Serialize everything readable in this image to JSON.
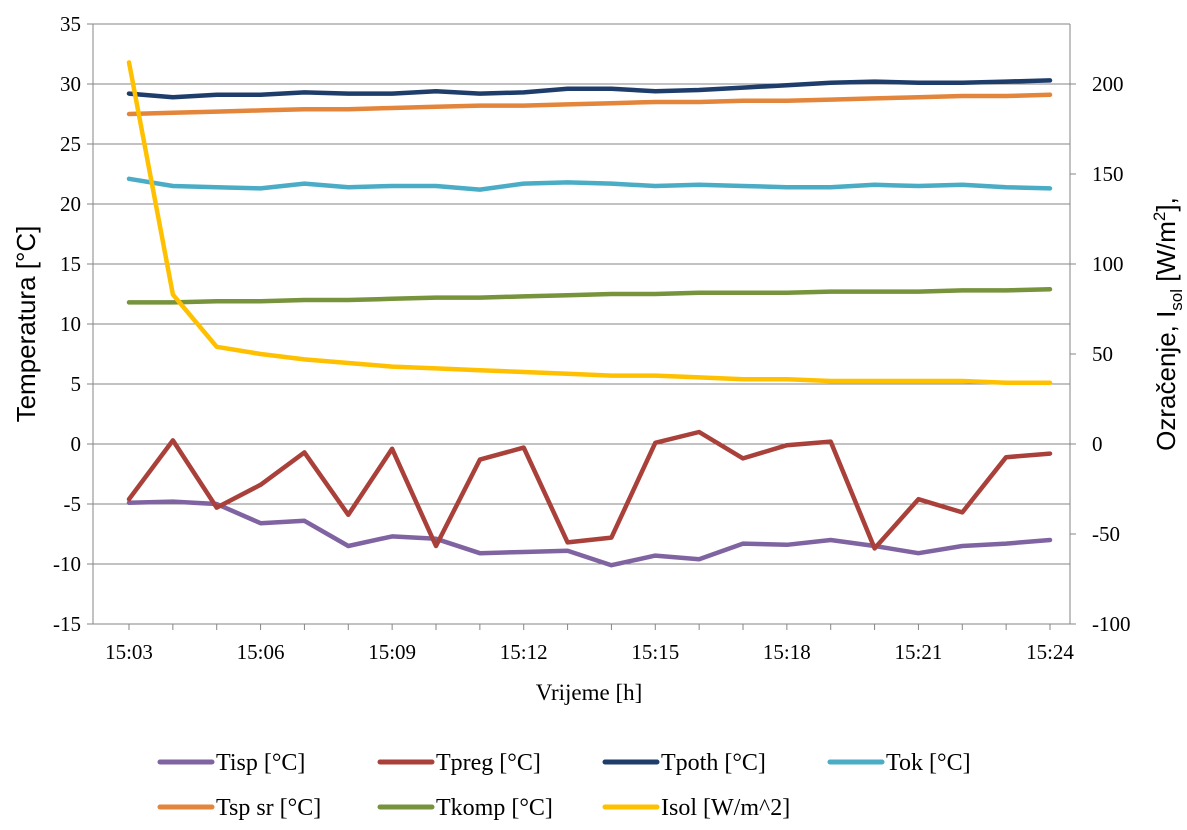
{
  "chart_data": {
    "type": "line",
    "xlabel": "Vrijeme [h]",
    "ylabel": "Temperatura [°C]",
    "y2label": {
      "main": "Ozračenje, I",
      "sub": "sol",
      "tail": " [W/m",
      "sup": "2",
      "end": "],"
    },
    "x": [
      "15:03",
      "15:04",
      "15:05",
      "15:06",
      "15:07",
      "15:08",
      "15:09",
      "15:10",
      "15:11",
      "15:12",
      "15:13",
      "15:14",
      "15:15",
      "15:16",
      "15:17",
      "15:18",
      "15:19",
      "15:20",
      "15:21",
      "15:22",
      "15:23",
      "15:24"
    ],
    "x_tick_labels": [
      "15:03",
      "15:06",
      "15:09",
      "15:12",
      "15:15",
      "15:18",
      "15:21",
      "15:24"
    ],
    "ylim": [
      -15,
      35
    ],
    "yticks": [
      -15,
      -10,
      -5,
      0,
      5,
      10,
      15,
      20,
      25,
      30,
      35
    ],
    "y2lim": [
      -100,
      233.33
    ],
    "y2ticks": [
      -100,
      -50,
      0,
      50,
      100,
      150,
      200
    ],
    "grid": true,
    "legend_position": "bottom",
    "series": [
      {
        "name": "Tisp [°C]",
        "color": "#8064A2",
        "axis": "left",
        "values": [
          -4.9,
          -4.8,
          -5.0,
          -6.6,
          -6.4,
          -8.5,
          -7.7,
          -7.9,
          -9.1,
          -9.0,
          -8.9,
          -10.1,
          -9.3,
          -9.6,
          -8.3,
          -8.4,
          -8.0,
          -8.5,
          -9.1,
          -8.5,
          -8.3,
          -8.0
        ]
      },
      {
        "name": "Tpreg [°C]",
        "color": "#A9403A",
        "axis": "left",
        "values": [
          -4.6,
          0.3,
          -5.3,
          -3.4,
          -0.7,
          -5.9,
          -0.4,
          -8.5,
          -1.3,
          -0.3,
          -8.2,
          -7.8,
          0.1,
          1.0,
          -1.2,
          -0.1,
          0.2,
          -8.7,
          -4.6,
          -5.7,
          -1.1,
          -0.8
        ]
      },
      {
        "name": "Tpoth [°C]",
        "color": "#1F3D6B",
        "axis": "left",
        "values": [
          29.2,
          28.9,
          29.1,
          29.1,
          29.3,
          29.2,
          29.2,
          29.4,
          29.2,
          29.3,
          29.6,
          29.6,
          29.4,
          29.5,
          29.7,
          29.9,
          30.1,
          30.2,
          30.1,
          30.1,
          30.2,
          30.3
        ]
      },
      {
        "name": "Tok [°C]",
        "color": "#4BACC6",
        "axis": "left",
        "values": [
          22.1,
          21.5,
          21.4,
          21.3,
          21.7,
          21.4,
          21.5,
          21.5,
          21.2,
          21.7,
          21.8,
          21.7,
          21.5,
          21.6,
          21.5,
          21.4,
          21.4,
          21.6,
          21.5,
          21.6,
          21.4,
          21.3
        ]
      },
      {
        "name": "Tsp  sr [°C]",
        "color": "#E3853A",
        "axis": "left",
        "values": [
          27.5,
          27.6,
          27.7,
          27.8,
          27.9,
          27.9,
          28.0,
          28.1,
          28.2,
          28.2,
          28.3,
          28.4,
          28.5,
          28.5,
          28.6,
          28.6,
          28.7,
          28.8,
          28.9,
          29.0,
          29.0,
          29.1
        ]
      },
      {
        "name": "Tkomp [°C]",
        "color": "#77933C",
        "axis": "left",
        "values": [
          11.8,
          11.8,
          11.9,
          11.9,
          12.0,
          12.0,
          12.1,
          12.2,
          12.2,
          12.3,
          12.4,
          12.5,
          12.5,
          12.6,
          12.6,
          12.6,
          12.7,
          12.7,
          12.7,
          12.8,
          12.8,
          12.9
        ]
      },
      {
        "name": "Isol [W/m^2]",
        "color": "#FFC000",
        "axis": "right",
        "values": [
          212,
          83,
          54,
          50,
          47,
          45,
          43,
          42,
          41,
          40,
          39,
          38,
          38,
          37,
          36,
          36,
          35,
          35,
          35,
          35,
          34,
          34
        ]
      }
    ]
  }
}
